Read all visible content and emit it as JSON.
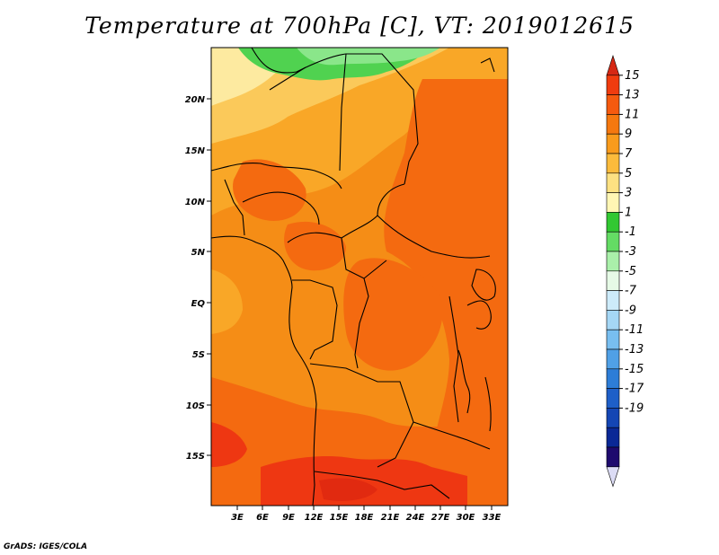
{
  "title": "Temperature at 700hPa [C], VT: 2019012615",
  "credit": "GrADS: IGES/COLA",
  "lat_labels": [
    "20N",
    "15N",
    "10N",
    "5N",
    "EQ",
    "5S",
    "10S",
    "15S"
  ],
  "lon_labels": [
    "3E",
    "6E",
    "9E",
    "12E",
    "15E",
    "18E",
    "21E",
    "24E",
    "27E",
    "30E",
    "33E"
  ],
  "colorbar": {
    "labels": [
      "15",
      "13",
      "11",
      "9",
      "7",
      "5",
      "3",
      "1",
      "-1",
      "-3",
      "-5",
      "-7",
      "-9",
      "-11",
      "-13",
      "-15",
      "-17",
      "-19"
    ],
    "colors": [
      "#d62814",
      "#f03c0f",
      "#f55a0f",
      "#f5780f",
      "#f99b1c",
      "#fbbb3c",
      "#fde182",
      "#fff6b4",
      "#32c832",
      "#64dc64",
      "#aaf0aa",
      "#e6fae6",
      "#cdebfa",
      "#a5d7f5",
      "#78bef0",
      "#50a0e6",
      "#2d7dd7",
      "#1e5fc8",
      "#1446b4",
      "#0a2896",
      "#1e0a6e",
      "#dcdcf5"
    ]
  },
  "map_colors": {
    "hot": "#ee3712",
    "warm": "#f46a10",
    "mid": "#f58d16",
    "mild": "#f9a727",
    "cool": "#fbc95a",
    "pale": "#fdeaa0",
    "green": "#50d250",
    "lightgreen": "#8ae68a"
  }
}
